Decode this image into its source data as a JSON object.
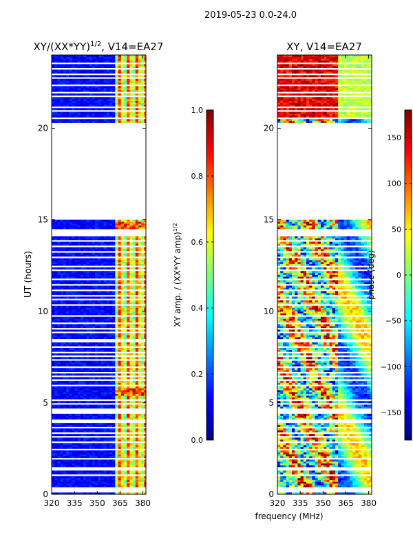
{
  "figure": {
    "suptitle": "2019-05-23 0.0-24.0",
    "xlabel": "frequency (MHz)"
  },
  "colors": {
    "jet_stops": [
      "#00007f",
      "#0000ff",
      "#007fff",
      "#00ffff",
      "#7fff7f",
      "#ffff00",
      "#ff7f00",
      "#ff0000",
      "#7f0000"
    ],
    "gap_color": "#ffffff",
    "axis_color": "#000000"
  },
  "chart_data": [
    {
      "type": "heatmap",
      "title_main": "XY/(XX*YY)",
      "title_sup": "1/2",
      "title_rest": ", V14=EA27",
      "xlabel": "",
      "ylabel": "UT (hours)",
      "xlim": [
        320,
        382
      ],
      "ylim": [
        0,
        24
      ],
      "xticks": [
        320,
        335,
        350,
        365,
        380
      ],
      "yticks": [
        0,
        5,
        10,
        15,
        20
      ],
      "data_gap_hours": [
        [
          15.0,
          20.3
        ]
      ],
      "colorbar": {
        "label_main": "XY amp. / (XX*YY amp)",
        "label_sup": "1/2",
        "range": [
          0.0,
          1.0
        ],
        "ticks": [
          "0.0",
          "0.2",
          "0.4",
          "0.6",
          "0.8",
          "1.0"
        ],
        "tick_values": [
          0.0,
          0.2,
          0.4,
          0.6,
          0.8,
          1.0
        ]
      }
    },
    {
      "type": "heatmap",
      "title": "XY, V14=EA27",
      "xlabel": "",
      "ylabel": "",
      "xlim": [
        320,
        382
      ],
      "ylim": [
        0,
        24
      ],
      "xticks": [
        320,
        335,
        350,
        365,
        380
      ],
      "yticks": [
        0,
        5,
        10,
        15,
        20
      ],
      "data_gap_hours": [
        [
          15.0,
          20.3
        ]
      ],
      "colorbar": {
        "label": "phase (deg)",
        "range": [
          -180,
          180
        ],
        "ticks": [
          "150",
          "100",
          "50",
          "0",
          "−50",
          "−100",
          "−150"
        ],
        "tick_values": [
          150,
          100,
          50,
          0,
          -50,
          -100,
          -150
        ]
      }
    }
  ]
}
